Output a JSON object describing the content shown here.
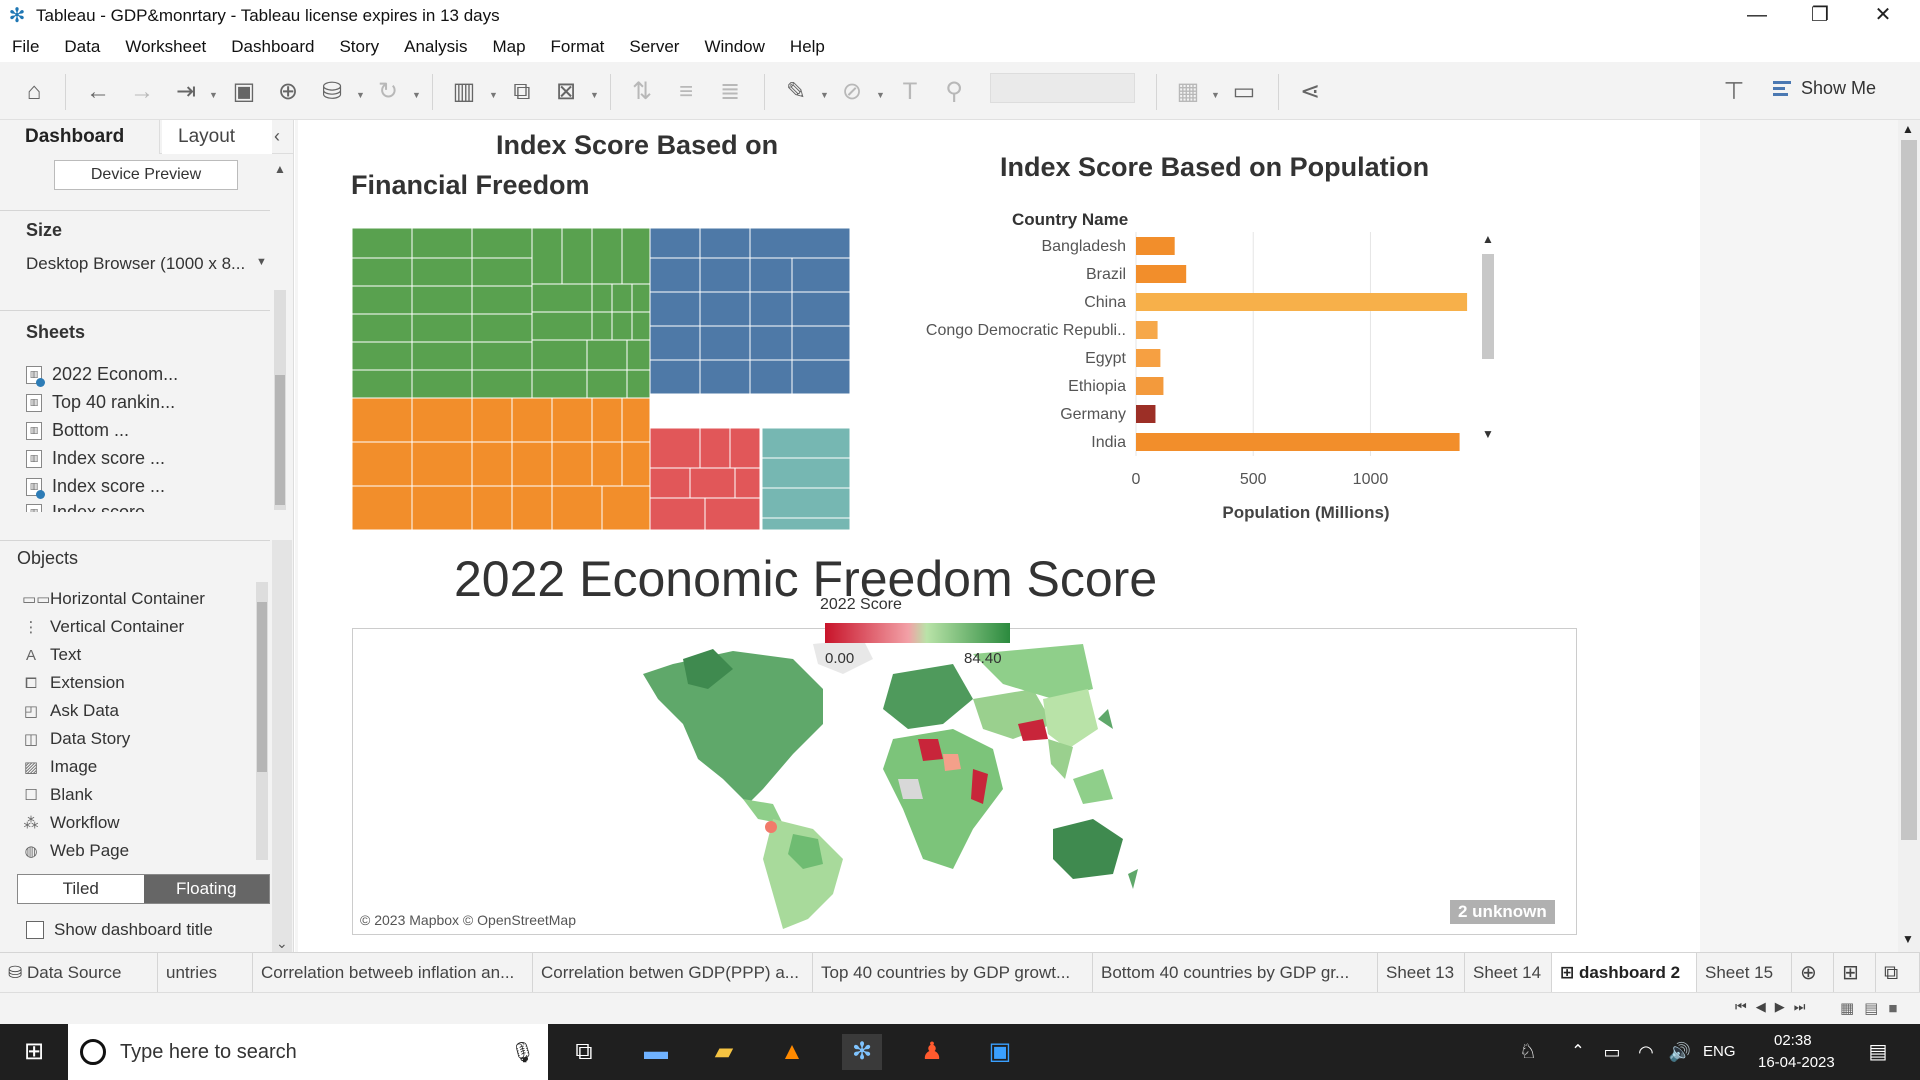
{
  "window": {
    "title": "Tableau - GDP&monrtary - Tableau license expires in 13 days",
    "controls": [
      "—",
      "❐",
      "✕"
    ]
  },
  "menu": [
    "File",
    "Data",
    "Worksheet",
    "Dashboard",
    "Story",
    "Analysis",
    "Map",
    "Format",
    "Server",
    "Window",
    "Help"
  ],
  "toolbar": {
    "show_me_label": "Show Me"
  },
  "left_panel": {
    "tabs": {
      "dashboard": "Dashboard",
      "layout": "Layout"
    },
    "device_preview": "Device Preview",
    "size_heading": "Size",
    "size_value": "Desktop Browser (1000 x 8...",
    "sheets_heading": "Sheets",
    "sheets": [
      "2022 Econom...",
      "Top 40 rankin...",
      "Bottom ...",
      "Index score ...",
      "Index score ...",
      "Index score"
    ],
    "objects_heading": "Objects",
    "objects": [
      {
        "label": "Horizontal Container",
        "icon": "horizontal-container-icon"
      },
      {
        "label": "Vertical Container",
        "icon": "vertical-container-icon"
      },
      {
        "label": "Text",
        "icon": "text-icon"
      },
      {
        "label": "Extension",
        "icon": "extension-icon"
      },
      {
        "label": "Ask Data",
        "icon": "ask-data-icon"
      },
      {
        "label": "Data Story",
        "icon": "data-story-icon"
      },
      {
        "label": "Image",
        "icon": "image-icon"
      },
      {
        "label": "Blank",
        "icon": "blank-icon"
      },
      {
        "label": "Workflow",
        "icon": "workflow-icon"
      },
      {
        "label": "Web Page",
        "icon": "web-page-icon"
      }
    ],
    "tiled": "Tiled",
    "floating": "Floating",
    "show_dashboard_title": "Show dashboard title"
  },
  "dashboard": {
    "treemap_title_line1": "Index Score Based on",
    "treemap_title_line2": "Financial Freedom",
    "treemap_colors": {
      "green": "#59a14f",
      "orange": "#f28e2b",
      "blue": "#4e79a7",
      "red": "#e15759",
      "teal": "#76b7b2"
    },
    "bar_title": "Index Score Based on Population",
    "map_title": "2022 Economic Freedom Score",
    "map_legend_title": "2022 Score",
    "map_legend_min": "0.00",
    "map_legend_max": "84.40",
    "map_attribution": "© 2023 Mapbox © OpenStreetMap",
    "unknown_badge": "2 unknown"
  },
  "chart_data": {
    "type": "bar",
    "orientation": "horizontal",
    "title": "Index Score Based on Population",
    "category_header": "Country Name",
    "categories": [
      "Bangladesh",
      "Brazil",
      "China",
      "Congo Democratic Republi..",
      "Egypt",
      "Ethiopia",
      "Germany",
      "India"
    ],
    "values": [
      165,
      214,
      1412,
      92,
      104,
      117,
      83,
      1380
    ],
    "colors": [
      "#f28e2b",
      "#f28e2b",
      "#f7b04a",
      "#f6a84a",
      "#f6a042",
      "#f39a3c",
      "#9c2f26",
      "#f28e2b"
    ],
    "xlabel": "Population (Millions)",
    "xticks": [
      0,
      500,
      1000
    ],
    "xlim": [
      0,
      1450
    ],
    "grid": true
  },
  "sheet_tabs": [
    "Data Source",
    "untries",
    "Correlation betweeb inflation an...",
    "Correlation betwen GDP(PPP) a...",
    "Top 40 countries by GDP growt...",
    "Bottom 40 countries by GDP gr...",
    "Sheet 13",
    "Sheet 14",
    "dashboard 2",
    "Sheet 15"
  ],
  "taskbar": {
    "search_placeholder": "Type here to search",
    "language": "ENG",
    "time": "02:38",
    "date": "16-04-2023"
  }
}
